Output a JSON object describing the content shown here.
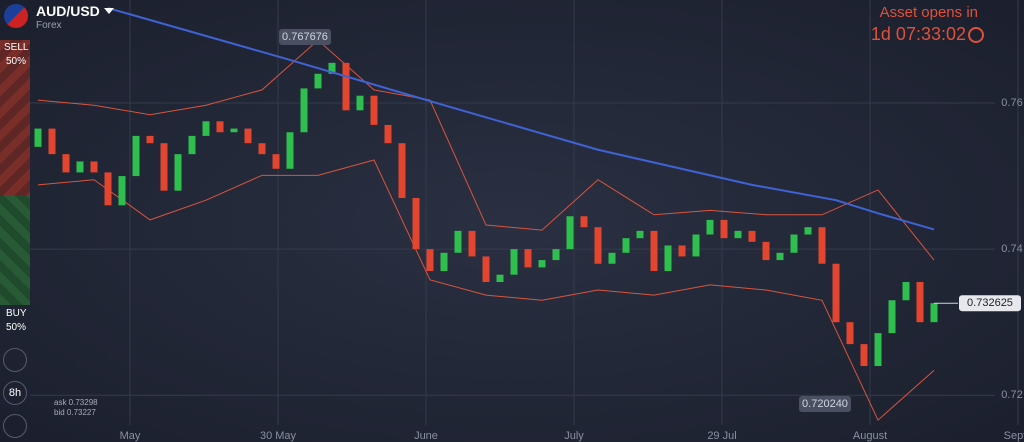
{
  "header": {
    "symbol": "AUD/USD",
    "market": "Forex",
    "opens_label": "Asset opens in",
    "countdown": "1d 07:33:02"
  },
  "sidebar": {
    "sell": "SELL",
    "sell_pct": "50%",
    "buy": "BUY",
    "buy_pct": "50%",
    "period": "8h",
    "ask": "ask 0.73298",
    "bid": "bid 0.73227"
  },
  "chart": {
    "type": "candlestick",
    "ylim": [
      0.7136,
      0.7741
    ],
    "yticks": [
      0.76,
      0.74,
      0.72
    ],
    "x_labels": [
      "May",
      "30 May",
      "June",
      "July",
      "29 Jul",
      "August",
      "Septe"
    ],
    "open": [
      0.754,
      0.7565,
      0.753,
      0.7505,
      0.752,
      0.7505,
      0.746,
      0.75,
      0.7555,
      0.7545,
      0.748,
      0.753,
      0.7555,
      0.7575,
      0.756,
      0.7565,
      0.7545,
      0.753,
      0.751,
      0.756,
      0.762,
      0.764,
      0.7655,
      0.759,
      0.761,
      0.757,
      0.7545,
      0.747,
      0.74,
      0.737,
      0.7395,
      0.7425,
      0.739,
      0.7355,
      0.7365,
      0.74,
      0.7375,
      0.7385,
      0.74,
      0.7445,
      0.743,
      0.738,
      0.7395,
      0.7415,
      0.7425,
      0.737,
      0.7405,
      0.739,
      0.742,
      0.744,
      0.7415,
      0.7425,
      0.741,
      0.7385,
      0.7395,
      0.742,
      0.743,
      0.738,
      0.73,
      0.727,
      0.724,
      0.7285,
      0.733,
      0.7355,
      0.73
    ],
    "close": [
      0.7565,
      0.753,
      0.7505,
      0.752,
      0.7505,
      0.746,
      0.75,
      0.7555,
      0.7545,
      0.748,
      0.753,
      0.7555,
      0.7575,
      0.756,
      0.7565,
      0.7545,
      0.753,
      0.751,
      0.756,
      0.762,
      0.764,
      0.7655,
      0.759,
      0.761,
      0.757,
      0.7545,
      0.747,
      0.74,
      0.737,
      0.7395,
      0.7425,
      0.739,
      0.7355,
      0.7365,
      0.74,
      0.7375,
      0.7385,
      0.74,
      0.7445,
      0.743,
      0.738,
      0.7395,
      0.7415,
      0.7425,
      0.737,
      0.7405,
      0.739,
      0.742,
      0.744,
      0.7415,
      0.7425,
      0.741,
      0.7385,
      0.7395,
      0.742,
      0.743,
      0.738,
      0.73,
      0.727,
      0.724,
      0.7285,
      0.733,
      0.7355,
      0.73,
      0.7326
    ],
    "up_color": "#2fbf4f",
    "down_color": "#e3452f",
    "band_x": [
      0,
      4,
      8,
      12,
      16,
      20,
      24,
      28,
      32,
      36,
      40,
      44,
      48,
      52,
      56,
      60,
      64
    ],
    "band_upper": [
      0.7604,
      0.7597,
      0.7584,
      0.7597,
      0.7618,
      0.7686,
      0.7618,
      0.7604,
      0.7433,
      0.7426,
      0.7495,
      0.7447,
      0.7453,
      0.7447,
      0.7447,
      0.7481,
      0.7385
    ],
    "band_lower": [
      0.7488,
      0.7495,
      0.744,
      0.7467,
      0.7501,
      0.7501,
      0.7522,
      0.7358,
      0.7337,
      0.733,
      0.7344,
      0.7337,
      0.7351,
      0.7344,
      0.733,
      0.7166,
      0.7234
    ],
    "band_color": "#d9553c",
    "ma_x": [
      5,
      18,
      29,
      40,
      51,
      57,
      60,
      64
    ],
    "ma": [
      0.773,
      0.7659,
      0.7597,
      0.7536,
      0.7488,
      0.7467,
      0.7449,
      0.7427
    ],
    "ma_color": "#3f63d6",
    "high_label": "0.767676",
    "low_label": "0.720240",
    "current_label": "0.732625"
  }
}
